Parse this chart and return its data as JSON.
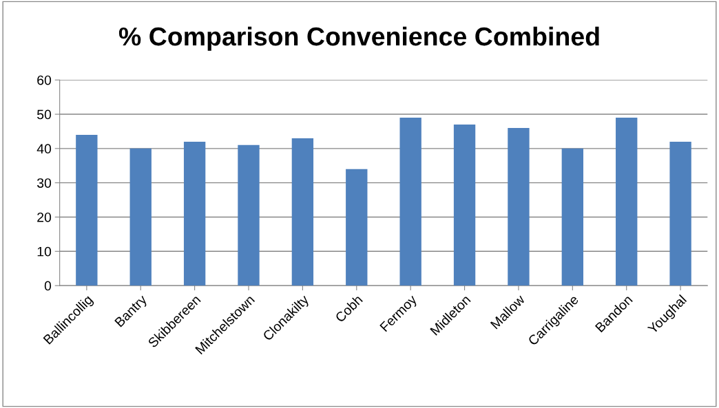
{
  "chart_data": {
    "type": "bar",
    "title": "% Comparison Convenience Combined",
    "categories": [
      "Ballincollig",
      "Bantry",
      "Skibbereen",
      "Mitchelstown",
      "Clonakilty",
      "Cobh",
      "Fermoy",
      "Midleton",
      "Mallow",
      "Carrigaline",
      "Bandon",
      "Youghal"
    ],
    "values": [
      44,
      40,
      42,
      41,
      43,
      34,
      49,
      47,
      46,
      40,
      49,
      42
    ],
    "color": "#4f81bd",
    "ylim": [
      0,
      60
    ],
    "yticks": [
      0,
      10,
      20,
      30,
      40,
      50,
      60
    ],
    "grid": "y",
    "legend": false
  }
}
